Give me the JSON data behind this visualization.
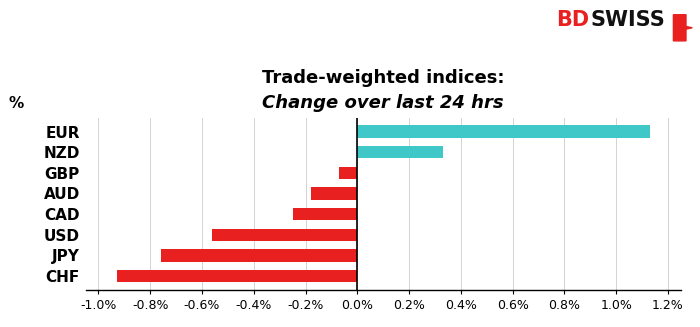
{
  "categories": [
    "EUR",
    "NZD",
    "GBP",
    "AUD",
    "CAD",
    "USD",
    "JPY",
    "CHF"
  ],
  "values": [
    0.0113,
    0.0033,
    -0.0007,
    -0.0018,
    -0.0025,
    -0.0056,
    -0.0076,
    -0.0093
  ],
  "bar_colors_positive": "#40C8C8",
  "bar_colors_negative": "#E82020",
  "title_line1": "Trade-weighted indices:",
  "title_line2": "Change over last 24 hrs",
  "ylabel": "%",
  "xlim": [
    -0.0105,
    0.0125
  ],
  "xtick_vals": [
    -0.01,
    -0.008,
    -0.006,
    -0.004,
    -0.002,
    0.0,
    0.002,
    0.004,
    0.006,
    0.008,
    0.01,
    0.012
  ],
  "xtick_labels": [
    "-1.0%",
    "-0.8%",
    "-0.6%",
    "-0.4%",
    "-0.2%",
    "0.0%",
    "0.2%",
    "0.4%",
    "0.6%",
    "0.8%",
    "1.0%",
    "1.2%"
  ],
  "background_color": "#ffffff",
  "title_fontsize": 13,
  "label_fontsize": 11,
  "tick_fontsize": 9,
  "bar_height": 0.6
}
